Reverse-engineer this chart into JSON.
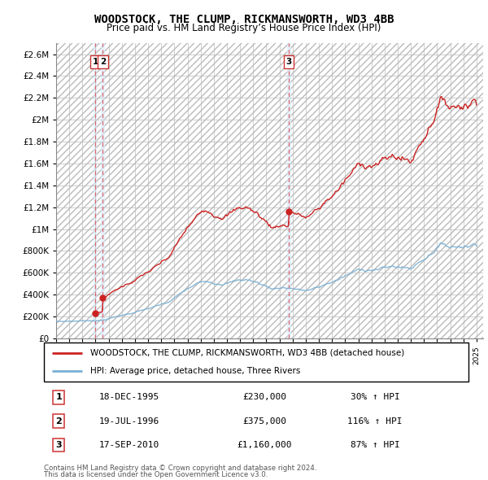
{
  "title": "WOODSTOCK, THE CLUMP, RICKMANSWORTH, WD3 4BB",
  "subtitle": "Price paid vs. HM Land Registry’s House Price Index (HPI)",
  "legend_line1": "WOODSTOCK, THE CLUMP, RICKMANSWORTH, WD3 4BB (detached house)",
  "legend_line2": "HPI: Average price, detached house, Three Rivers",
  "footer1": "Contains HM Land Registry data © Crown copyright and database right 2024.",
  "footer2": "This data is licensed under the Open Government Licence v3.0.",
  "transactions": [
    {
      "num": 1,
      "date": "18-DEC-1995",
      "price": 230000,
      "pct": "30%",
      "x": 1995.97
    },
    {
      "num": 2,
      "date": "19-JUL-1996",
      "price": 375000,
      "pct": "116%",
      "x": 1996.55
    },
    {
      "num": 3,
      "date": "17-SEP-2010",
      "price": 1160000,
      "pct": "87%",
      "x": 2010.72
    }
  ],
  "transaction_labels": [
    {
      "num": 1,
      "date": "18-DEC-1995",
      "price": "£230,000",
      "pct": "30% ↑ HPI"
    },
    {
      "num": 2,
      "date": "19-JUL-1996",
      "price": "£375,000",
      "pct": "116% ↑ HPI"
    },
    {
      "num": 3,
      "date": "17-SEP-2010",
      "price": "£1,160,000",
      "pct": "87% ↑ HPI"
    }
  ],
  "red_color": "#cc2222",
  "blue_color": "#7ab0d4",
  "dashed_red": "#dd6666",
  "highlight_blue": "#ddeeff",
  "background_color": "#ffffff",
  "grid_color": "#cccccc",
  "ylim": [
    0,
    2700000
  ],
  "xlim": [
    1993.0,
    2025.5
  ],
  "yticks": [
    0,
    200000,
    400000,
    600000,
    800000,
    1000000,
    1200000,
    1400000,
    1600000,
    1800000,
    2000000,
    2200000,
    2400000,
    2600000
  ],
  "ytick_labels": [
    "£0",
    "£200K",
    "£400K",
    "£600K",
    "£800K",
    "£1M",
    "£1.2M",
    "£1.4M",
    "£1.6M",
    "£1.8M",
    "£2M",
    "£2.2M",
    "£2.4M",
    "£2.6M"
  ]
}
